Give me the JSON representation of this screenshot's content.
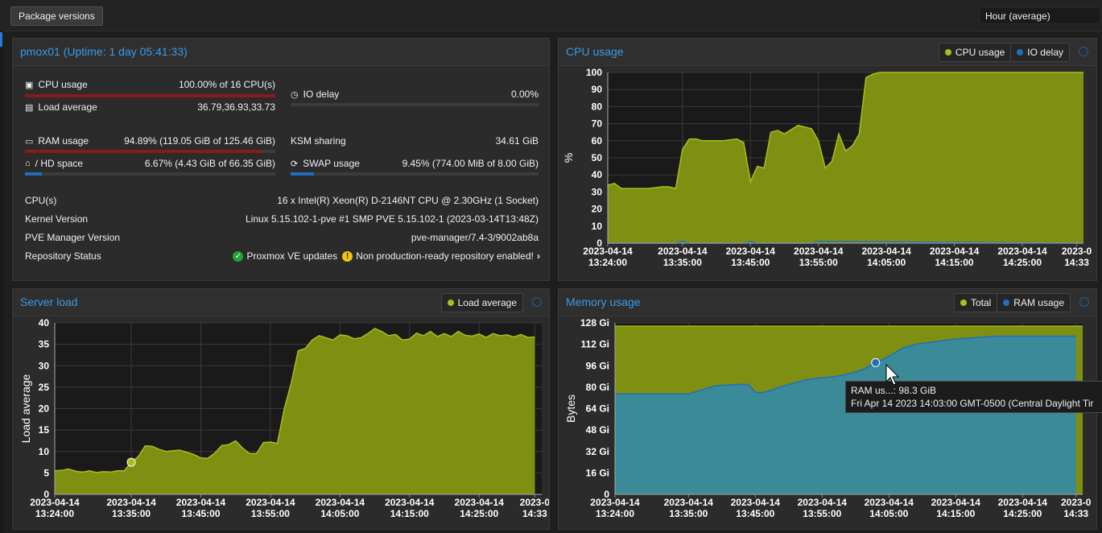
{
  "toolbar": {
    "package_versions": "Package versions",
    "timeframe": "Hour (average)"
  },
  "status": {
    "title": "pmox01 (Uptime: 1 day 05:41:33)",
    "cpu_label": "CPU usage",
    "cpu_value": "100.00% of 16 CPU(s)",
    "cpu_fraction": 1.0,
    "io_label": "IO delay",
    "io_value": "0.00%",
    "io_fraction": 0.0,
    "load_label": "Load average",
    "load_value": "36.79,36.93,33.73",
    "ram_label": "RAM usage",
    "ram_value": "94.89% (119.05 GiB of 125.46 GiB)",
    "ram_fraction": 0.9489,
    "ksm_label": "KSM sharing",
    "ksm_value": "34.61 GiB",
    "hd_label": "/ HD space",
    "hd_value": "6.67% (4.43 GiB of 66.35 GiB)",
    "hd_fraction": 0.0667,
    "swap_label": "SWAP usage",
    "swap_value": "9.45% (774.00 MiB of 8.00 GiB)",
    "swap_fraction": 0.0945,
    "cpus_label": "CPU(s)",
    "cpus_value": "16 x Intel(R) Xeon(R) D-2146NT CPU @ 2.30GHz (1 Socket)",
    "kernel_label": "Kernel Version",
    "kernel_value": "Linux 5.15.102-1-pve #1 SMP PVE 5.15.102-1 (2023-03-14T13:48Z)",
    "pve_label": "PVE Manager Version",
    "pve_value": "pve-manager/7.4-3/9002ab8a",
    "repo_label": "Repository Status",
    "repo_ok": "Proxmox VE updates",
    "repo_warn": "Non production-ready repository enabled!"
  },
  "panels": {
    "cpu": {
      "title": "CPU usage",
      "legend": [
        "CPU usage",
        "IO delay"
      ]
    },
    "load": {
      "title": "Server load",
      "legend": [
        "Load average"
      ]
    },
    "mem": {
      "title": "Memory usage",
      "legend": [
        "Total",
        "RAM usage"
      ]
    }
  },
  "tooltip": {
    "line1": "RAM us...: 98.3 GiB",
    "line2": "Fri Apr 14 2023 14:03:00 GMT-0500 (Central Daylight Tir"
  },
  "colors": {
    "olive": "#7f8f12",
    "olive_line": "#a9bf1a",
    "teal": "#3b8a97",
    "teal_line": "#1f6fbf",
    "accent": "#3a9be8"
  },
  "chart_data": [
    {
      "type": "area",
      "title": "CPU usage",
      "ylabel": "%",
      "ylim": [
        0,
        100
      ],
      "yticks": [
        0,
        10,
        20,
        30,
        40,
        50,
        60,
        70,
        80,
        90,
        100
      ],
      "xlim": [
        "2023-04-14 13:24",
        "2023-04-14 14:34"
      ],
      "xticks": [
        "2023-04-14 13:24:00",
        "2023-04-14 13:35:00",
        "2023-04-14 13:45:00",
        "2023-04-14 13:55:00",
        "2023-04-14 14:05:00",
        "2023-04-14 14:15:00",
        "2023-04-14 14:25:00",
        "2023-0 14:33"
      ],
      "series": [
        {
          "name": "CPU usage",
          "x": [
            "13:24",
            "13:25",
            "13:26",
            "13:28",
            "13:30",
            "13:32",
            "13:33",
            "13:34",
            "13:35",
            "13:36",
            "13:37",
            "13:38",
            "13:41",
            "13:43",
            "13:44",
            "13:45",
            "13:46",
            "13:47",
            "13:48",
            "13:49",
            "13:50",
            "13:52",
            "13:54",
            "13:55",
            "13:56",
            "13:57",
            "13:58",
            "13:59",
            "14:00",
            "14:01",
            "14:02",
            "14:03",
            "14:04",
            "14:06",
            "14:34"
          ],
          "values": [
            34,
            35,
            32,
            32,
            32,
            33,
            33,
            32,
            55,
            61,
            61,
            60,
            60,
            61,
            59,
            36,
            45,
            44,
            65,
            66,
            64,
            69,
            67,
            60,
            44,
            48,
            64,
            54,
            57,
            64,
            97,
            99,
            100,
            100,
            100
          ]
        },
        {
          "name": "IO delay",
          "x": [
            "13:24",
            "13:34",
            "13:35",
            "13:36",
            "13:44",
            "13:45",
            "13:46",
            "13:54",
            "13:55",
            "14:34"
          ],
          "values": [
            0,
            0,
            1,
            0,
            0,
            1,
            0,
            0,
            1,
            0
          ]
        }
      ]
    },
    {
      "type": "area",
      "title": "Server load",
      "ylabel": "Load average",
      "ylim": [
        0,
        40
      ],
      "yticks": [
        0,
        5,
        10,
        15,
        20,
        25,
        30,
        35,
        40
      ],
      "xlim": [
        "2023-04-14 13:24",
        "2023-04-14 14:34"
      ],
      "xticks": [
        "2023-04-14 13:24:00",
        "2023-04-14 13:35:00",
        "2023-04-14 13:45:00",
        "2023-04-14 13:55:00",
        "2023-04-14 14:05:00",
        "2023-04-14 14:15:00",
        "2023-04-14 14:25:00",
        "2023-0 14:33"
      ],
      "series": [
        {
          "name": "Load average",
          "x": [
            "13:24",
            "13:25",
            "13:26",
            "13:27",
            "13:28",
            "13:29",
            "13:30",
            "13:31",
            "13:32",
            "13:33",
            "13:34",
            "13:35",
            "13:36",
            "13:37",
            "13:38",
            "13:39",
            "13:40",
            "13:41",
            "13:42",
            "13:43",
            "13:44",
            "13:45",
            "13:46",
            "13:47",
            "13:48",
            "13:49",
            "13:50",
            "13:51",
            "13:52",
            "13:53",
            "13:54",
            "13:55",
            "13:56",
            "13:57",
            "13:58",
            "13:59",
            "14:00",
            "14:01",
            "14:02",
            "14:03",
            "14:04",
            "14:05",
            "14:06",
            "14:07",
            "14:08",
            "14:09",
            "14:10",
            "14:11",
            "14:12",
            "14:13",
            "14:14",
            "14:15",
            "14:16",
            "14:17",
            "14:18",
            "14:19",
            "14:20",
            "14:21",
            "14:22",
            "14:23",
            "14:24",
            "14:25",
            "14:26",
            "14:27",
            "14:28",
            "14:29",
            "14:30",
            "14:31",
            "14:32",
            "14:33"
          ],
          "values": [
            5.5,
            5.6,
            5.9,
            5.4,
            5.2,
            5.5,
            5.1,
            5.3,
            5.2,
            5.5,
            5.5,
            7.5,
            8.8,
            11.3,
            11.2,
            10.5,
            10.0,
            10.2,
            10.3,
            9.8,
            9.3,
            8.5,
            8.4,
            9.6,
            11.4,
            11.6,
            12.5,
            10.8,
            9.5,
            9.5,
            12.1,
            12.2,
            11.9,
            20.0,
            26.0,
            33.5,
            34.0,
            36.0,
            37.0,
            36.5,
            36.0,
            37.2,
            37.0,
            36.3,
            36.5,
            37.5,
            38.7,
            38.0,
            37.0,
            37.3,
            36.0,
            36.2,
            37.6,
            37.0,
            38.0,
            36.8,
            37.5,
            36.8,
            38.0,
            37.1,
            36.9,
            37.4,
            36.6,
            37.5,
            37.0,
            37.2,
            36.7,
            37.3,
            36.6,
            36.7
          ]
        }
      ]
    },
    {
      "type": "area",
      "title": "Memory usage",
      "ylabel": "Bytes",
      "ylim": [
        0,
        128
      ],
      "ytick_labels": [
        "0",
        "16 Gi",
        "32 Gi",
        "48 Gi",
        "64 Gi",
        "80 Gi",
        "96 Gi",
        "112 Gi",
        "128 Gi"
      ],
      "xlim": [
        "2023-04-14 13:24",
        "2023-04-14 14:34"
      ],
      "xticks": [
        "2023-04-14 13:24:00",
        "2023-04-14 13:35:00",
        "2023-04-14 13:45:00",
        "2023-04-14 13:55:00",
        "2023-04-14 14:05:00",
        "2023-04-14 14:15:00",
        "2023-04-14 14:25:00",
        "2023-0 14:33"
      ],
      "series": [
        {
          "name": "Total",
          "x": [
            "13:24",
            "14:34"
          ],
          "values": [
            125.5,
            125.5
          ]
        },
        {
          "name": "RAM usage",
          "x": [
            "13:24",
            "13:35",
            "13:37",
            "13:39",
            "13:42",
            "13:44",
            "13:45",
            "13:46",
            "13:47",
            "13:48",
            "13:50",
            "13:53",
            "13:55",
            "13:57",
            "13:59",
            "14:01",
            "14:03",
            "14:05",
            "14:07",
            "14:09",
            "14:12",
            "14:15",
            "14:18",
            "14:21",
            "14:24",
            "14:27",
            "14:30",
            "14:33"
          ],
          "values": [
            75,
            75,
            78,
            81,
            82,
            82,
            76,
            76,
            77,
            79,
            82,
            86,
            87,
            88,
            90,
            93,
            98.3,
            103,
            109,
            112,
            114,
            116,
            117,
            118,
            118,
            118,
            118,
            118
          ]
        }
      ]
    }
  ]
}
